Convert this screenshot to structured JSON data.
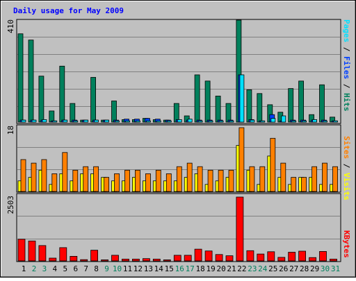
{
  "colors": {
    "background": "#C0C0C0",
    "frame": "#000000",
    "title": "#0000FF",
    "hits": "#00805C",
    "files": "#0040FF",
    "pages": "#00E0FF",
    "visits": "#FFFF00",
    "sites": "#FF8000",
    "kbytes": "#FF0000",
    "weekend_day_label": "#00805C",
    "weekday_day_label": "#000000"
  },
  "chart_data": [
    {
      "type": "bar",
      "title": "Daily usage for May 2009",
      "ylabel_parts": [
        {
          "text": "Pages",
          "color": "#00E0FF"
        },
        {
          "text": " / ",
          "color": "#000000"
        },
        {
          "text": "Files",
          "color": "#0040FF"
        },
        {
          "text": " / ",
          "color": "#000000"
        },
        {
          "text": "Hits",
          "color": "#00805C"
        }
      ],
      "ymax_label": "410",
      "ylim": [
        0,
        410
      ],
      "categories": [
        "1",
        "2",
        "3",
        "4",
        "5",
        "6",
        "7",
        "8",
        "9",
        "10",
        "11",
        "12",
        "13",
        "14",
        "15",
        "16",
        "17",
        "18",
        "19",
        "20",
        "21",
        "22",
        "23",
        "24",
        "25",
        "26",
        "27",
        "28",
        "29",
        "30",
        "31"
      ],
      "series": [
        {
          "name": "Hits",
          "values": [
            355,
            330,
            185,
            45,
            225,
            75,
            8,
            180,
            8,
            85,
            10,
            10,
            15,
            10,
            8,
            75,
            25,
            190,
            165,
            105,
            75,
            410,
            130,
            115,
            70,
            40,
            135,
            165,
            30,
            150,
            20
          ]
        },
        {
          "name": "Files",
          "values": [
            8,
            8,
            8,
            5,
            8,
            8,
            8,
            8,
            8,
            8,
            12,
            12,
            15,
            12,
            8,
            10,
            8,
            8,
            8,
            8,
            8,
            190,
            10,
            5,
            30,
            5,
            8,
            8,
            8,
            8,
            5
          ]
        },
        {
          "name": "Pages",
          "values": [
            8,
            8,
            10,
            5,
            8,
            5,
            8,
            8,
            8,
            5,
            5,
            5,
            5,
            5,
            5,
            10,
            12,
            5,
            5,
            5,
            5,
            190,
            8,
            5,
            15,
            25,
            5,
            5,
            10,
            5,
            5
          ]
        }
      ]
    },
    {
      "type": "bar",
      "ylabel_parts": [
        {
          "text": "Sites",
          "color": "#FF8000"
        },
        {
          "text": " / ",
          "color": "#000000"
        },
        {
          "text": "Visits",
          "color": "#FFFF00"
        }
      ],
      "ymax_label": "18",
      "ylim": [
        0,
        18
      ],
      "categories": [
        "1",
        "2",
        "3",
        "4",
        "5",
        "6",
        "7",
        "8",
        "9",
        "10",
        "11",
        "12",
        "13",
        "14",
        "15",
        "16",
        "17",
        "18",
        "19",
        "20",
        "21",
        "22",
        "23",
        "24",
        "25",
        "26",
        "27",
        "28",
        "29",
        "30",
        "31"
      ],
      "series": [
        {
          "name": "Visits",
          "values": [
            3,
            4,
            6,
            2,
            5,
            3,
            5,
            5,
            4,
            3,
            3,
            4,
            3,
            3,
            3,
            3,
            4,
            5,
            2,
            3,
            4,
            13,
            6,
            2,
            10,
            4,
            2,
            4,
            4,
            2,
            2
          ]
        },
        {
          "name": "Sites",
          "values": [
            9,
            8,
            9,
            5,
            11,
            6,
            7,
            7,
            4,
            5,
            6,
            6,
            5,
            6,
            5,
            7,
            8,
            7,
            6,
            6,
            6,
            18,
            7,
            7,
            15,
            8,
            4,
            4,
            7,
            8,
            7
          ]
        }
      ]
    },
    {
      "type": "bar",
      "ylabel_parts": [
        {
          "text": "KBytes",
          "color": "#FF0000"
        }
      ],
      "ymax_label": "2503",
      "ylim": [
        0,
        2503
      ],
      "categories": [
        "1",
        "2",
        "3",
        "4",
        "5",
        "6",
        "7",
        "8",
        "9",
        "10",
        "11",
        "12",
        "13",
        "14",
        "15",
        "16",
        "17",
        "18",
        "19",
        "20",
        "21",
        "22",
        "23",
        "24",
        "25",
        "26",
        "27",
        "28",
        "29",
        "30",
        "31"
      ],
      "series": [
        {
          "name": "KBytes",
          "values": [
            850,
            780,
            600,
            110,
            520,
            180,
            50,
            420,
            40,
            220,
            70,
            70,
            90,
            70,
            40,
            220,
            220,
            460,
            390,
            250,
            200,
            2503,
            400,
            270,
            360,
            140,
            340,
            380,
            130,
            370,
            70
          ]
        }
      ]
    }
  ],
  "x_axis": {
    "day_labels": [
      "1",
      "2",
      "3",
      "4",
      "5",
      "6",
      "7",
      "8",
      "9",
      "10",
      "11",
      "12",
      "13",
      "14",
      "15",
      "16",
      "17",
      "18",
      "19",
      "20",
      "21",
      "22",
      "23",
      "24",
      "25",
      "26",
      "27",
      "28",
      "29",
      "30",
      "31"
    ],
    "weekend_days": [
      "2",
      "3",
      "9",
      "10",
      "16",
      "17",
      "23",
      "24",
      "30",
      "31"
    ]
  }
}
